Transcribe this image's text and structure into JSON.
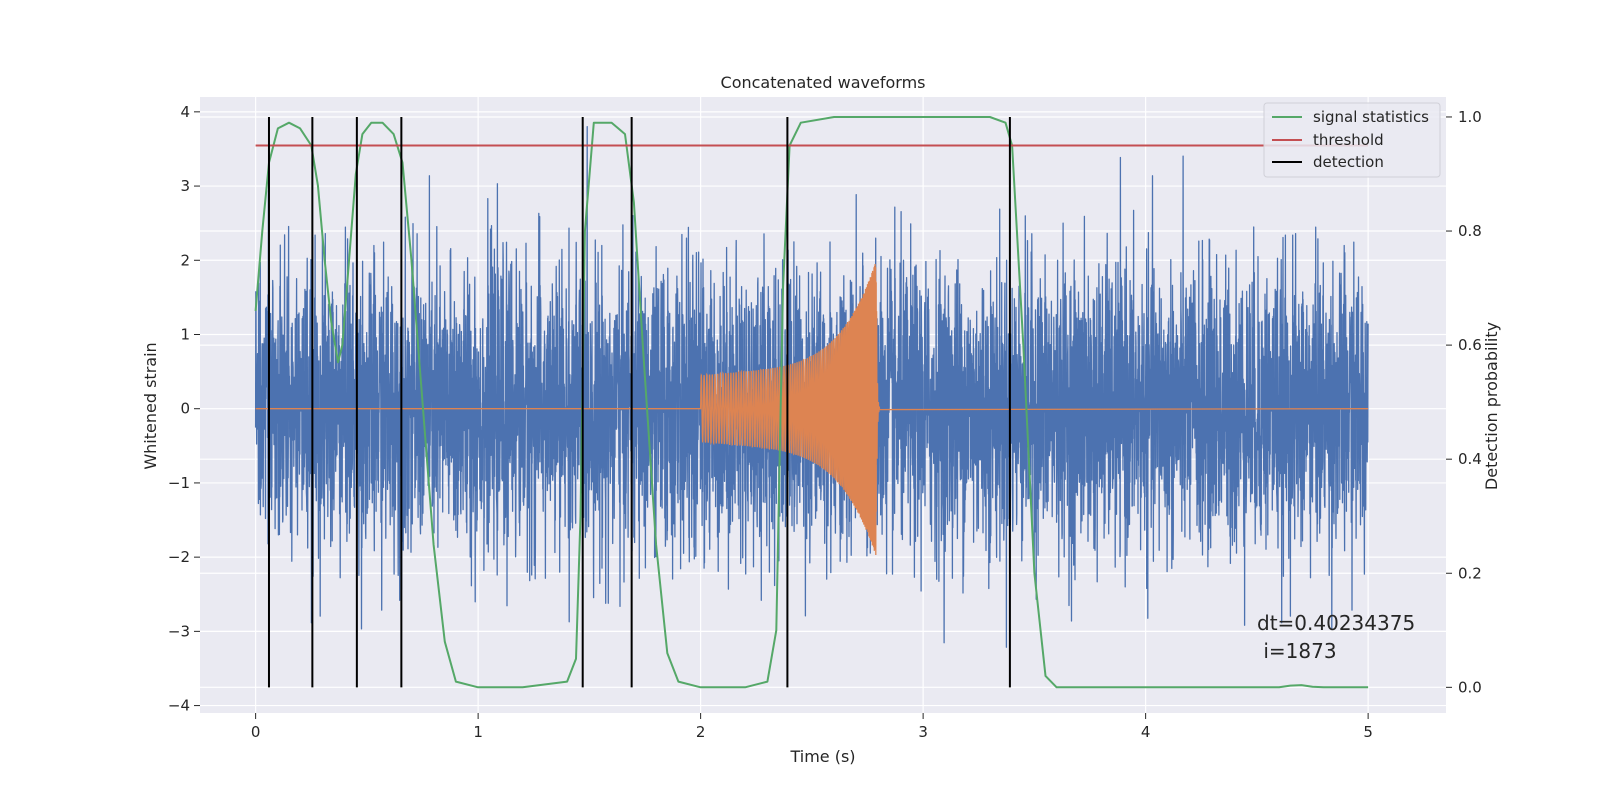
{
  "chart_data": {
    "type": "line",
    "title": "Concatenated waveforms",
    "xlabel": "Time (s)",
    "ylabel_left": "Whitened strain",
    "ylabel_right": "Detection probability",
    "xlim": [
      -0.25,
      5.35
    ],
    "ylim_left": [
      -4.1,
      4.2
    ],
    "ylim_right": [
      -0.045,
      1.035
    ],
    "x_ticks": [
      0,
      1,
      2,
      3,
      4,
      5
    ],
    "x_tick_labels": [
      "0",
      "1",
      "2",
      "3",
      "4",
      "5"
    ],
    "y_ticks_left": [
      -4,
      -3,
      -2,
      -1,
      0,
      1,
      2,
      3,
      4
    ],
    "y_tick_labels_left": [
      "−4",
      "−3",
      "−2",
      "−1",
      "0",
      "1",
      "2",
      "3",
      "4"
    ],
    "y_ticks_right": [
      0.0,
      0.2,
      0.4,
      0.6,
      0.8,
      1.0
    ],
    "y_tick_labels_right": [
      "0.0",
      "0.2",
      "0.4",
      "0.6",
      "0.8",
      "1.0"
    ],
    "grid": true,
    "legend_position": "top-right",
    "legend": [
      {
        "label": "signal statistics",
        "color": "#55a868"
      },
      {
        "label": "threshold",
        "color": "#c44e52"
      },
      {
        "label": "detection",
        "color": "#000000"
      }
    ],
    "series": [
      {
        "name": "signal statistics",
        "axis": "right",
        "color": "#55a868",
        "x": [
          0.0,
          0.03,
          0.06,
          0.1,
          0.15,
          0.2,
          0.25,
          0.28,
          0.31,
          0.34,
          0.37,
          0.39,
          0.42,
          0.45,
          0.48,
          0.52,
          0.57,
          0.62,
          0.66,
          0.7,
          0.75,
          0.8,
          0.85,
          0.9,
          1.0,
          1.2,
          1.4,
          1.44,
          1.46,
          1.48,
          1.52,
          1.6,
          1.66,
          1.7,
          1.74,
          1.8,
          1.85,
          1.9,
          2.0,
          2.2,
          2.3,
          2.34,
          2.37,
          2.4,
          2.45,
          2.6,
          3.0,
          3.3,
          3.37,
          3.4,
          3.45,
          3.5,
          3.55,
          3.6,
          4.0,
          4.6,
          4.65,
          4.7,
          4.75,
          4.8,
          5.0
        ],
        "y": [
          0.66,
          0.8,
          0.92,
          0.98,
          0.99,
          0.98,
          0.95,
          0.88,
          0.75,
          0.64,
          0.57,
          0.6,
          0.75,
          0.9,
          0.97,
          0.99,
          0.99,
          0.97,
          0.92,
          0.75,
          0.5,
          0.25,
          0.08,
          0.01,
          0.0,
          0.0,
          0.01,
          0.05,
          0.3,
          0.8,
          0.99,
          0.99,
          0.97,
          0.85,
          0.6,
          0.25,
          0.06,
          0.01,
          0.0,
          0.0,
          0.01,
          0.1,
          0.7,
          0.95,
          0.99,
          1.0,
          1.0,
          1.0,
          0.99,
          0.95,
          0.6,
          0.2,
          0.02,
          0.0,
          0.0,
          0.0,
          0.003,
          0.004,
          0.001,
          0.0,
          0.0
        ]
      },
      {
        "name": "threshold",
        "axis": "right",
        "color": "#c44e52",
        "x": [
          0.0,
          5.0
        ],
        "y": [
          0.95,
          0.95
        ]
      },
      {
        "name": "detection",
        "axis": "right",
        "color": "#000000",
        "type": "vlines",
        "x": [
          0.06,
          0.255,
          0.455,
          0.655,
          1.47,
          1.69,
          2.39,
          3.39
        ],
        "ymin": 0.0,
        "ymax": 1.0
      }
    ],
    "noise_series": {
      "axis": "left",
      "color": "#4c72b0",
      "x_range": [
        0.0,
        5.0
      ],
      "typical_amplitude": 1.0,
      "max_amplitude": 3.8
    },
    "chirp_series": {
      "axis": "left",
      "color": "#dd8452",
      "start": 2.0,
      "merger": 2.79,
      "start_amplitude": 0.45,
      "peak_amplitude": 1.8
    },
    "annotation": [
      "dt=0.40234375",
      " i=1873"
    ]
  }
}
